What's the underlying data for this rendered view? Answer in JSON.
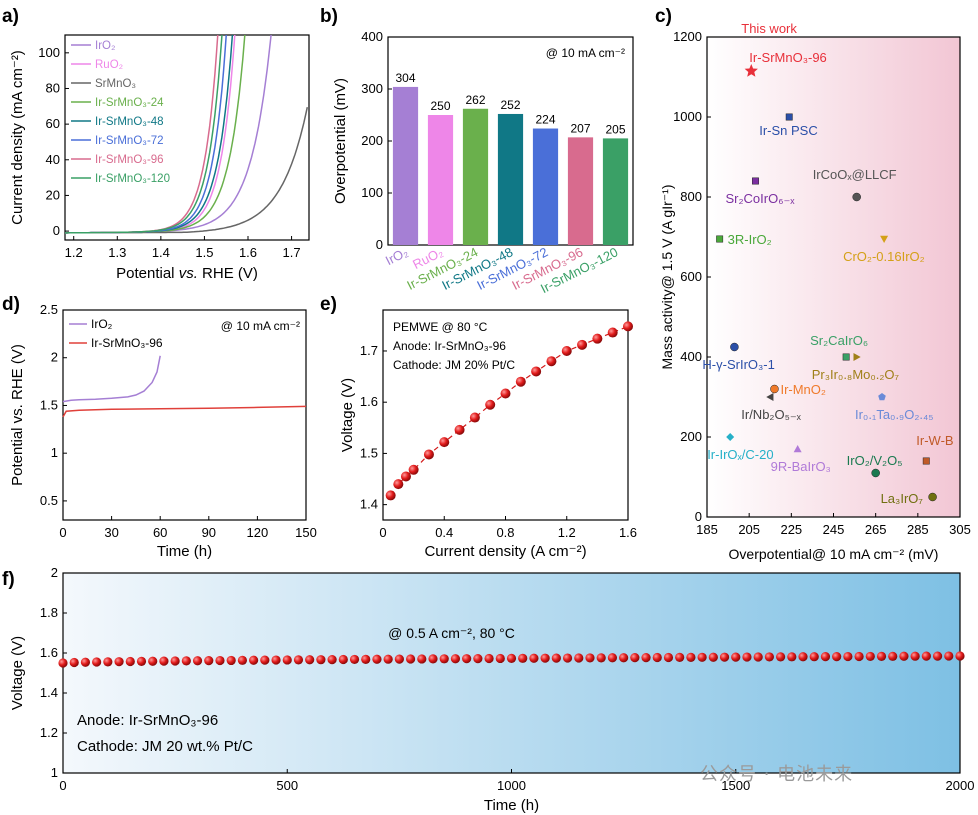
{
  "panels": {
    "a": "a)",
    "b": "b)",
    "c": "c)",
    "d": "d)",
    "e": "e)",
    "f": "f)"
  },
  "watermark": "公众号 · 电池未来",
  "chart_data": [
    {
      "id": "a",
      "type": "line",
      "xlabel_pre": "Potential ",
      "xlabel_it": "vs.",
      "xlabel_post": " RHE (V)",
      "ylabel": "Current density (mA cm⁻²)",
      "xlim": [
        1.18,
        1.74
      ],
      "ylim": [
        -5,
        110
      ],
      "xticks": [
        1.2,
        1.3,
        1.4,
        1.5,
        1.6,
        1.7
      ],
      "yticks": [
        0,
        20,
        40,
        60,
        80,
        100
      ],
      "series": [
        {
          "name": "IrO₂",
          "color": "#a57fd4",
          "onset": 1.445,
          "k": 0.046
        },
        {
          "name": "RuO₂",
          "color": "#ee86e8",
          "onset": 1.425,
          "k": 0.032
        },
        {
          "name": "SrMnO₃",
          "color": "#666666",
          "onset": 1.5,
          "k": 0.5
        },
        {
          "name": "Ir-SrMnO₃-24",
          "color": "#6ab04c",
          "onset": 1.43,
          "k": 0.036
        },
        {
          "name": "Ir-SrMnO₃-48",
          "color": "#107886",
          "onset": 1.415,
          "k": 0.033
        },
        {
          "name": "Ir-SrMnO₃-72",
          "color": "#4a6fd8",
          "onset": 1.41,
          "k": 0.031
        },
        {
          "name": "Ir-SrMnO₃-96",
          "color": "#d86b8e",
          "onset": 1.395,
          "k": 0.03
        },
        {
          "name": "Ir-SrMnO₃-120",
          "color": "#3aa066",
          "onset": 1.4,
          "k": 0.031
        }
      ]
    },
    {
      "id": "b",
      "type": "bar",
      "ylabel": "Overpotential (mV)",
      "ylim": [
        0,
        400
      ],
      "yticks": [
        0,
        100,
        200,
        300,
        400
      ],
      "annotation": "@ 10 mA cm⁻²",
      "categories": [
        "IrO₂",
        "RuO₂",
        "Ir-SrMnO₃-24",
        "Ir-SrMnO₃-48",
        "Ir-SrMnO₃-72",
        "Ir-SrMnO₃-96",
        "Ir-SrMnO₃-120"
      ],
      "values": [
        304,
        250,
        262,
        252,
        224,
        207,
        205
      ],
      "colors": [
        "#a57fd4",
        "#ee86e8",
        "#6ab04c",
        "#107886",
        "#4a6fd8",
        "#d86b8e",
        "#3aa066"
      ]
    },
    {
      "id": "c",
      "type": "scatter",
      "xlabel": "Overpotential@ 10 mA cm⁻² (mV)",
      "ylabel": "Mass activity@ 1.5 V (A gIr⁻¹)",
      "xlim": [
        185,
        305
      ],
      "ylim": [
        0,
        1200
      ],
      "xticks": [
        185,
        205,
        225,
        245,
        265,
        285,
        305
      ],
      "yticks": [
        0,
        200,
        400,
        600,
        800,
        1000,
        1200
      ],
      "points": [
        {
          "label": "This work",
          "sub": "Ir-SrMnO₃-96",
          "x": 206,
          "y": 1115,
          "color": "#e8303a",
          "marker": "star"
        },
        {
          "label": "Ir-Sn PSC",
          "x": 224,
          "y": 1000,
          "color": "#2b4fa8",
          "marker": "square"
        },
        {
          "label": "Sr₂CoIrO₆₋ₓ",
          "x": 208,
          "y": 840,
          "color": "#7b2fa0",
          "marker": "square"
        },
        {
          "label": "IrCoOₓ@LLCF",
          "x": 256,
          "y": 800,
          "color": "#555555",
          "marker": "circle"
        },
        {
          "label": "3R-IrO₂",
          "x": 191,
          "y": 695,
          "color": "#4aa83a",
          "marker": "square"
        },
        {
          "label": "CrO₂-0.16IrO₂",
          "x": 269,
          "y": 695,
          "color": "#d4a017",
          "marker": "triangle-down"
        },
        {
          "label": "H-γ-SrIrO₃-1",
          "x": 198,
          "y": 425,
          "color": "#2b4fa8",
          "marker": "circle"
        },
        {
          "label": "Sr₂CaIrO₆",
          "x": 251,
          "y": 400,
          "color": "#3aa066",
          "marker": "square"
        },
        {
          "label": "Pr₃Ir₀.₈Mo₀.₂O₇",
          "x": 256,
          "y": 400,
          "color": "#a08018",
          "marker": "triangle-right"
        },
        {
          "label": "Ir-MnO₂",
          "x": 217,
          "y": 320,
          "color": "#f07a2a",
          "marker": "circle"
        },
        {
          "label": "Ir/Nb₂O₅₋ₓ",
          "x": 215,
          "y": 300,
          "color": "#444444",
          "marker": "triangle-left"
        },
        {
          "label": "Ir₀.₁Ta₀.₉O₂.₄₅",
          "x": 268,
          "y": 300,
          "color": "#6a8ad8",
          "marker": "pentagon"
        },
        {
          "label": "Ir-IrOₓ/C-20",
          "x": 196,
          "y": 200,
          "color": "#26b0c8",
          "marker": "diamond"
        },
        {
          "label": "9R-BaIrO₃",
          "x": 228,
          "y": 170,
          "color": "#b07ad8",
          "marker": "triangle"
        },
        {
          "label": "IrO₂/V₂O₅",
          "x": 265,
          "y": 110,
          "color": "#1a7a50",
          "marker": "circle"
        },
        {
          "label": "Ir-W-B",
          "x": 289,
          "y": 140,
          "color": "#c05a28",
          "marker": "square"
        },
        {
          "label": "La₃IrO₇",
          "x": 292,
          "y": 50,
          "color": "#707010",
          "marker": "circle"
        }
      ]
    },
    {
      "id": "d",
      "type": "line",
      "xlabel": "Time (h)",
      "ylabel": "Potential vs. RHE (V)",
      "xlim": [
        0,
        150
      ],
      "ylim": [
        0.3,
        2.5
      ],
      "xticks": [
        0,
        30,
        60,
        90,
        120,
        150
      ],
      "yticks": [
        0.5,
        1.0,
        1.5,
        2.0,
        2.5
      ],
      "annotation": "@ 10 mA cm⁻²",
      "series": [
        {
          "name": "IrO₂",
          "color": "#a57fd4",
          "x": [
            0,
            5,
            10,
            20,
            30,
            40,
            45,
            50,
            55,
            58,
            60
          ],
          "y": [
            1.54,
            1.555,
            1.56,
            1.565,
            1.575,
            1.59,
            1.61,
            1.65,
            1.74,
            1.85,
            2.02
          ]
        },
        {
          "name": "Ir-SrMnO₃-96",
          "color": "#e0403a",
          "x": [
            0,
            2,
            10,
            30,
            60,
            90,
            120,
            150
          ],
          "y": [
            1.38,
            1.44,
            1.45,
            1.46,
            1.465,
            1.47,
            1.48,
            1.49
          ]
        }
      ]
    },
    {
      "id": "e",
      "type": "scatter",
      "xlabel": "Current density (A cm⁻²)",
      "ylabel": "Voltage (V)",
      "xlim": [
        0,
        1.6
      ],
      "ylim": [
        1.37,
        1.78
      ],
      "xticks": [
        0,
        0.4,
        0.8,
        1.2,
        1.6
      ],
      "yticks": [
        1.4,
        1.5,
        1.6,
        1.7
      ],
      "legend_lines": [
        "PEMWE @ 80 °C",
        "Anode: Ir-SrMnO₃-96",
        "Cathode: JM 20% Pt/C"
      ],
      "x": [
        0.05,
        0.1,
        0.15,
        0.2,
        0.3,
        0.4,
        0.5,
        0.6,
        0.7,
        0.8,
        0.9,
        1.0,
        1.1,
        1.2,
        1.3,
        1.4,
        1.5,
        1.6
      ],
      "y": [
        1.418,
        1.44,
        1.455,
        1.468,
        1.498,
        1.522,
        1.546,
        1.57,
        1.595,
        1.617,
        1.64,
        1.66,
        1.68,
        1.7,
        1.712,
        1.724,
        1.736,
        1.748
      ]
    },
    {
      "id": "f",
      "type": "scatter",
      "xlabel": "Time (h)",
      "ylabel": "Voltage (V)",
      "xlim": [
        0,
        2000
      ],
      "ylim": [
        1.0,
        2.0
      ],
      "xticks": [
        0,
        500,
        1000,
        1500,
        2000
      ],
      "yticks": [
        1.0,
        1.2,
        1.4,
        1.6,
        1.8,
        2.0
      ],
      "annotation": "@ 0.5 A cm⁻², 80 °C",
      "legend_lines": [
        "Anode: Ir-SrMnO₃-96",
        "Cathode: JM 20 wt.% Pt/C"
      ],
      "start": [
        0,
        1.55
      ],
      "end": [
        2000,
        1.585
      ],
      "step": 25
    }
  ]
}
